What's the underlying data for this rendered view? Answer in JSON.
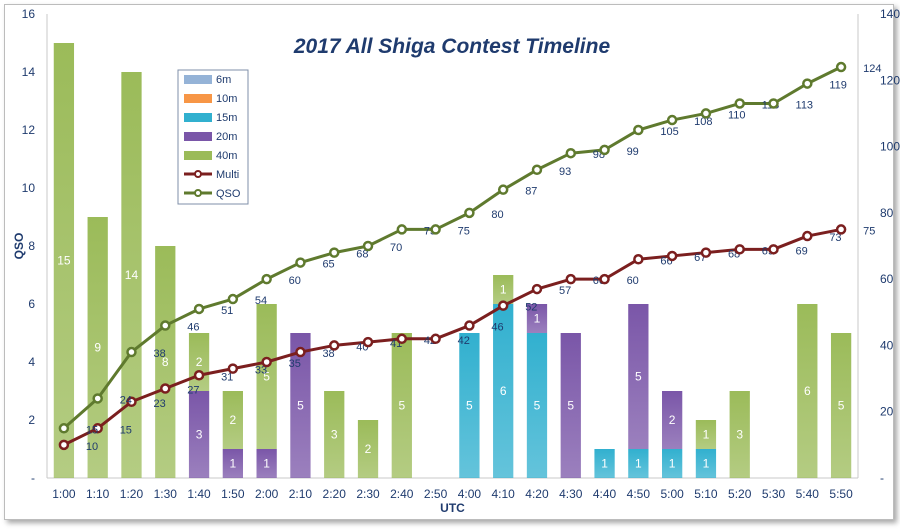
{
  "chart_data": {
    "type": "bar+line",
    "title": "2017 All Shiga Contest Timeline",
    "xlabel": "UTC",
    "ylabel": "QSO",
    "ylim": [
      0,
      16
    ],
    "y_ticks": [
      "-",
      "2",
      "4",
      "6",
      "8",
      "10",
      "12",
      "14",
      "16"
    ],
    "y2lim": [
      0,
      140
    ],
    "y2_ticks": [
      "-",
      "20",
      "40",
      "60",
      "80",
      "100",
      "120",
      "140"
    ],
    "categories": [
      "1:00",
      "1:10",
      "1:20",
      "1:30",
      "1:40",
      "1:50",
      "2:00",
      "2:10",
      "2:20",
      "2:30",
      "2:40",
      "2:50",
      "4:00",
      "4:10",
      "4:20",
      "4:30",
      "4:40",
      "4:50",
      "5:00",
      "5:10",
      "5:20",
      "5:30",
      "5:40",
      "5:50"
    ],
    "stacked_series": [
      {
        "name": "6m",
        "color": "#95b3d7",
        "values": [
          0,
          0,
          0,
          0,
          0,
          0,
          0,
          0,
          0,
          0,
          0,
          0,
          0,
          0,
          0,
          0,
          0,
          0,
          0,
          0,
          0,
          0,
          0,
          0
        ]
      },
      {
        "name": "10m",
        "color": "#f79646",
        "values": [
          0,
          0,
          0,
          0,
          0,
          0,
          0,
          0,
          0,
          0,
          0,
          0,
          0,
          0,
          0,
          0,
          0,
          0,
          0,
          0,
          0,
          0,
          0,
          0
        ]
      },
      {
        "name": "15m",
        "color": "#31b0cf",
        "values": [
          0,
          0,
          0,
          0,
          0,
          0,
          0,
          0,
          0,
          0,
          0,
          0,
          5,
          6,
          5,
          0,
          1,
          1,
          1,
          1,
          0,
          0,
          0,
          0
        ]
      },
      {
        "name": "20m",
        "color": "#7a56a8",
        "values": [
          0,
          0,
          0,
          0,
          3,
          1,
          1,
          5,
          0,
          0,
          0,
          0,
          0,
          0,
          1,
          5,
          0,
          5,
          2,
          0,
          0,
          0,
          0,
          0
        ]
      },
      {
        "name": "40m",
        "color": "#9bbb59",
        "values": [
          15,
          9,
          14,
          8,
          2,
          2,
          5,
          0,
          3,
          2,
          5,
          0,
          0,
          1,
          0,
          0,
          0,
          0,
          0,
          1,
          3,
          0,
          6,
          5
        ]
      }
    ],
    "line_series": [
      {
        "name": "Multi",
        "color": "#7b1f1f",
        "values": [
          10,
          15,
          23,
          27,
          31,
          33,
          35,
          38,
          40,
          41,
          42,
          42,
          46,
          52,
          57,
          60,
          60,
          66,
          67,
          68,
          69,
          69,
          73,
          75
        ],
        "labels": [
          "10",
          "15",
          "23",
          "27",
          "31",
          "33",
          "35",
          "38",
          "40",
          "41",
          "42",
          "42",
          "46",
          "52",
          "57",
          "60",
          "60",
          "66",
          "67",
          "68",
          "69",
          "69",
          "73",
          "75"
        ]
      },
      {
        "name": "QSO",
        "color": "#5f7a2e",
        "values": [
          15,
          24,
          38,
          46,
          51,
          54,
          60,
          65,
          68,
          70,
          75,
          75,
          80,
          87,
          93,
          98,
          99,
          105,
          108,
          110,
          113,
          113,
          119,
          124
        ],
        "labels": [
          "15",
          "24",
          "38",
          "46",
          "51",
          "54",
          "60",
          "65",
          "68",
          "70",
          "75",
          "75",
          "80",
          "87",
          "93",
          "98",
          "99",
          "105",
          "108",
          "110",
          "113",
          "113",
          "119",
          "124"
        ]
      }
    ],
    "legend": {
      "position": "top-left",
      "entries": [
        "6m",
        "10m",
        "15m",
        "20m",
        "40m",
        "Multi",
        "QSO"
      ]
    }
  }
}
